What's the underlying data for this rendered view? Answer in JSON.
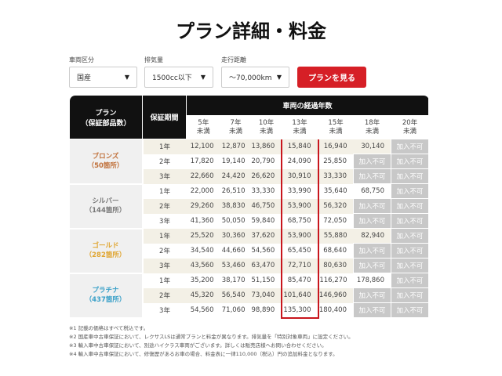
{
  "title": "プラン詳細・料金",
  "filters": [
    {
      "label": "車両区分",
      "value": "国産"
    },
    {
      "label": "排気量",
      "value": "1500cc以下"
    },
    {
      "label": "走行距離",
      "value": "～70,000km"
    }
  ],
  "submit_label": "プランを見る",
  "table": {
    "plan_header": "プラン",
    "plan_header_sub": "（保証部品数）",
    "period_header": "保証期間",
    "years_header": "車両の経過年数",
    "years": [
      [
        "5年",
        "未満"
      ],
      [
        "7年",
        "未満"
      ],
      [
        "10年",
        "未満"
      ],
      [
        "13年",
        "未満"
      ],
      [
        "15年",
        "未満"
      ],
      [
        "18年",
        "未満"
      ],
      [
        "20年",
        "未満"
      ]
    ],
    "highlight_column": "13年未満",
    "unavailable": "加入不可",
    "plans": [
      {
        "name": "ブロンズ",
        "parts": "（50箇所）",
        "color": "#c0703a",
        "rows": [
          {
            "period": "1年",
            "prices": [
              "12,100",
              "12,870",
              "13,860",
              "15,840",
              "16,940",
              "30,140",
              null
            ]
          },
          {
            "period": "2年",
            "prices": [
              "17,820",
              "19,140",
              "20,790",
              "24,090",
              "25,850",
              null,
              null
            ]
          },
          {
            "period": "3年",
            "prices": [
              "22,660",
              "24,420",
              "26,620",
              "30,910",
              "33,330",
              null,
              null
            ]
          }
        ]
      },
      {
        "name": "シルバー",
        "parts": "（144箇所）",
        "color": "#777777",
        "rows": [
          {
            "period": "1年",
            "prices": [
              "22,000",
              "26,510",
              "33,330",
              "33,990",
              "35,640",
              "68,750",
              null
            ]
          },
          {
            "period": "2年",
            "prices": [
              "29,260",
              "38,830",
              "46,750",
              "53,900",
              "56,320",
              null,
              null
            ]
          },
          {
            "period": "3年",
            "prices": [
              "41,360",
              "50,050",
              "59,840",
              "68,750",
              "72,050",
              null,
              null
            ]
          }
        ]
      },
      {
        "name": "ゴールド",
        "parts": "（282箇所）",
        "color": "#e0a530",
        "rows": [
          {
            "period": "1年",
            "prices": [
              "25,520",
              "30,360",
              "37,620",
              "53,900",
              "55,880",
              "82,940",
              null
            ]
          },
          {
            "period": "2年",
            "prices": [
              "34,540",
              "44,660",
              "54,560",
              "65,450",
              "68,640",
              null,
              null
            ]
          },
          {
            "period": "3年",
            "prices": [
              "43,560",
              "53,460",
              "63,470",
              "72,710",
              "80,630",
              null,
              null
            ]
          }
        ]
      },
      {
        "name": "プラチナ",
        "parts": "（437箇所）",
        "color": "#3aa0c8",
        "rows": [
          {
            "period": "1年",
            "prices": [
              "35,200",
              "38,170",
              "51,150",
              "85,470",
              "116,270",
              "178,860",
              null
            ]
          },
          {
            "period": "2年",
            "prices": [
              "45,320",
              "56,540",
              "73,040",
              "101,640",
              "146,960",
              null,
              null
            ]
          },
          {
            "period": "3年",
            "prices": [
              "54,560",
              "71,060",
              "98,890",
              "135,300",
              "180,400",
              null,
              null
            ]
          }
        ]
      }
    ]
  },
  "notes": [
    "※1 記載の価格はすべて税込です。",
    "※2 国産車中古車保証において、レクサスLSは通常プランと料金が異なります。排気量を「特別対象車両」に設定ください。",
    "※3 輸入車中古車保証において、別途ハイクラス車両がございます。詳しくは販売店様へお問い合わせください。",
    "※4 輸入車中古車保証において、修復歴があるお車の場合、料金表に一律110,000（税込）円の追加料金となります。"
  ],
  "colors": {
    "accent": "#d61f26",
    "header": "#111111",
    "stripe": "#f3f0e6",
    "unavailable": "#c8c8c8"
  }
}
